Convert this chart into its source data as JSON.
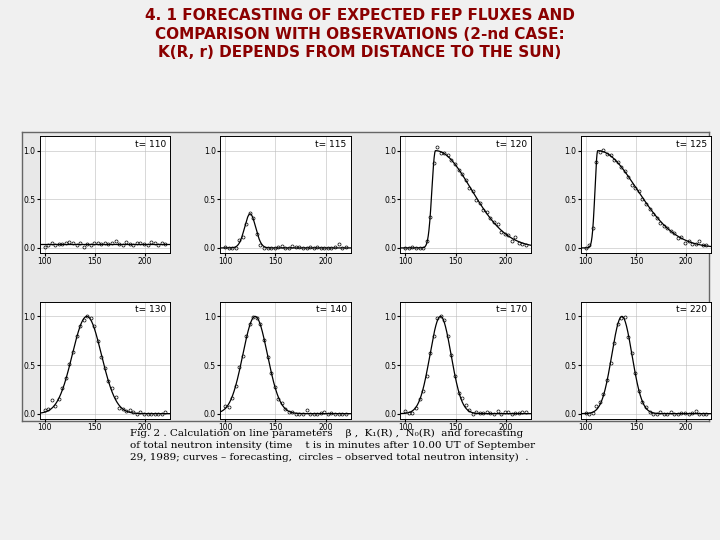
{
  "title_line1": "4. 1 FORECASTING OF EXPECTED FEP FLUXES AND",
  "title_line2": "COMPARISON WITH OBSERVATIONS (2-nd CASE:",
  "title_line3": "K(R, r) DEPENDS FROM DISTANCE TO THE SUN)",
  "title_color": "#8B0000",
  "title_fontsize": 11,
  "title_fontweight": "bold",
  "bg_color": "#f0f0f0",
  "panel_bg": "#ffffff",
  "subplot_labels": [
    "t= 110",
    "t= 115",
    "t= 120",
    "t= 125",
    "t= 130",
    "t= 140",
    "t= 170",
    "t= 220"
  ],
  "caption_line1": "Fig. 2 . Calculation on line parameters    β ,  K₁(R) ,  N₀(R)  and forecasting",
  "caption_line2": "of total neutron intensity (time    t is in minutes after 10.00 UT of September",
  "caption_line3": "29, 1989; curves – forecasting,  circles – observed total neutron intensity)  .",
  "caption_fontsize": 7.5,
  "xlim": [
    95,
    225
  ],
  "ylim": [
    -0.05,
    1.15
  ],
  "xticks": [
    100,
    150,
    200
  ],
  "yticks": [
    0,
    0.5,
    1
  ],
  "grid_color": "#bbbbbb",
  "curve_color": "#000000",
  "circle_color": "#000000",
  "outer_border_color": "#888888"
}
